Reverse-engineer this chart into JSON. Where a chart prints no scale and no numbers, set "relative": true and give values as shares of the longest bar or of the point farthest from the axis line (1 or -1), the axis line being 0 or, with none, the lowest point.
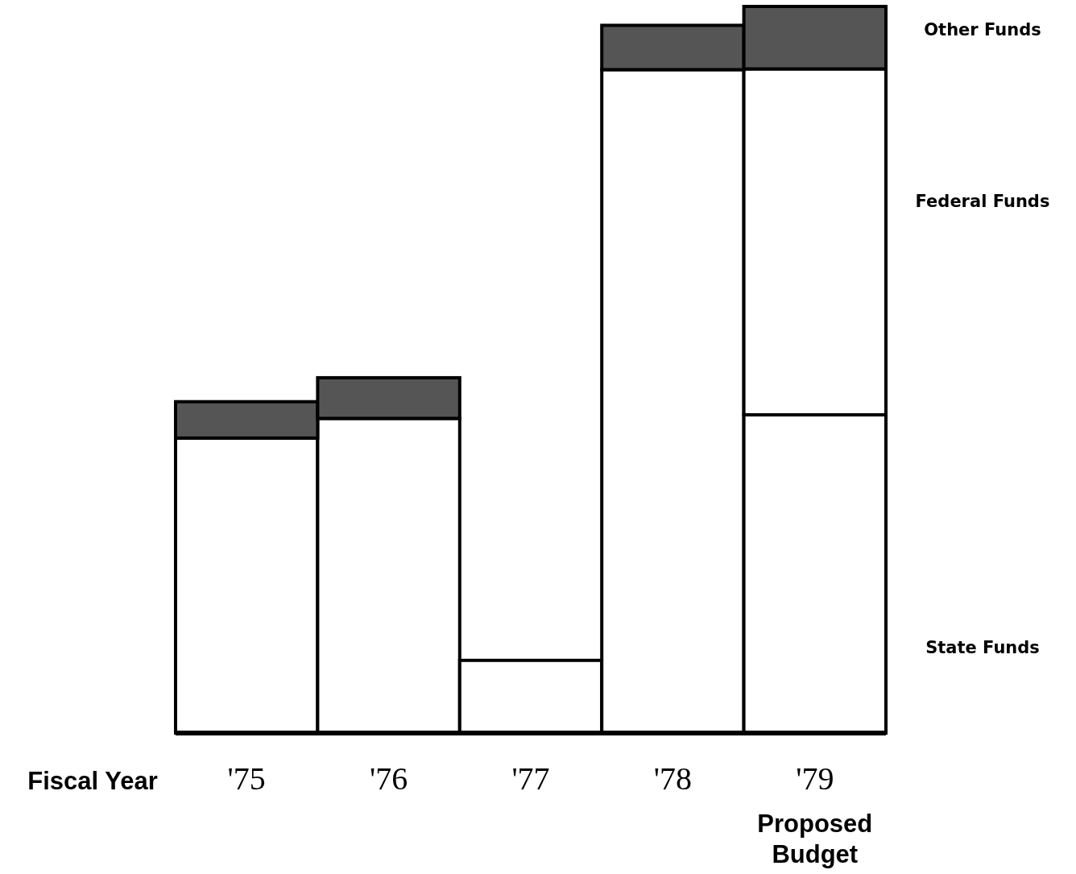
{
  "chart_data": {
    "type": "bar",
    "stacked": true,
    "relative": true,
    "xlabel": "Fiscal Year",
    "categories": [
      "'75",
      "'76",
      "'77",
      "'78",
      "'79"
    ],
    "series": [
      {
        "name": "State Funds",
        "color": "#ffffff",
        "values": [
          0.406,
          0.433,
          0.1,
          0.913,
          0.438
        ]
      },
      {
        "name": "Federal Funds",
        "color": "#ffffff",
        "values": [
          0,
          0,
          0,
          0,
          0.476
        ]
      },
      {
        "name": "Other Funds",
        "color": "#555555",
        "values": [
          0.05,
          0.056,
          0,
          0.061,
          0.086
        ]
      }
    ],
    "legend": "right",
    "annotations": [
      "Proposed Budget"
    ]
  }
}
